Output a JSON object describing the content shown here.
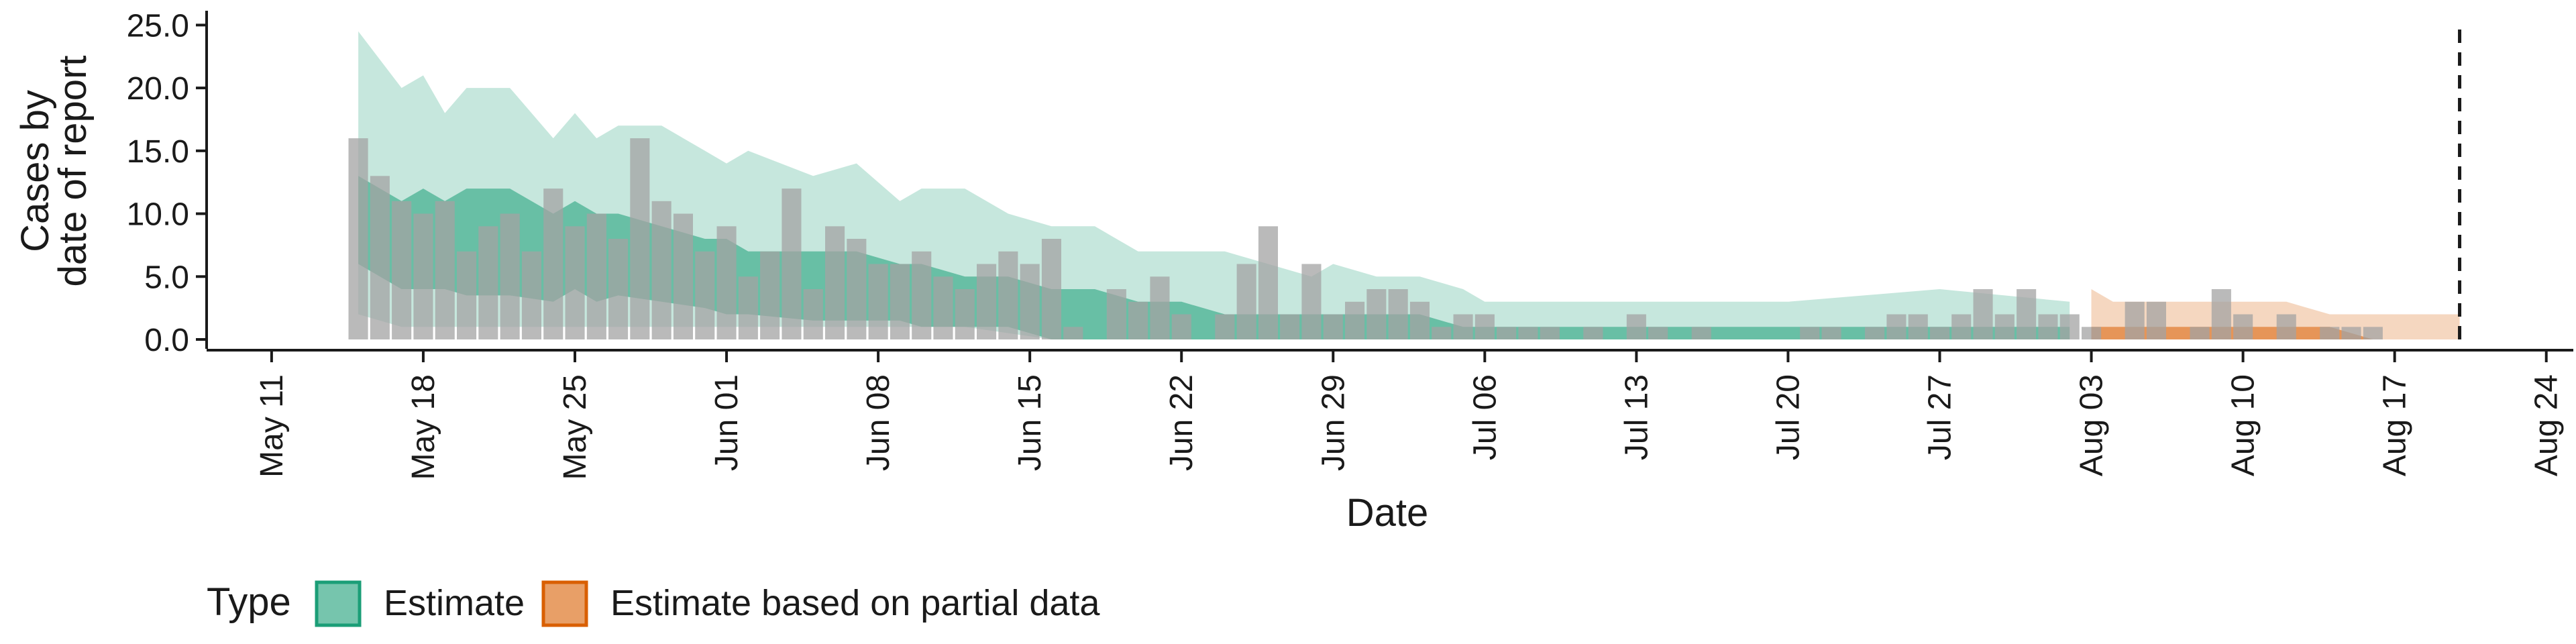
{
  "chart_data": {
    "type": "bar",
    "xlabel": "Date",
    "ylabel_lines": [
      "Cases by",
      "date of report"
    ],
    "y_ticks": [
      0,
      5,
      10,
      15,
      20,
      25
    ],
    "y_tick_labels": [
      "0.0",
      "5.0",
      "10.0",
      "15.0",
      "20.0",
      "25.0"
    ],
    "ylim": [
      0,
      25.5
    ],
    "xlim": [
      "2020-05-08",
      "2020-08-25"
    ],
    "x_ticks": [
      "2020-05-11",
      "2020-05-18",
      "2020-05-25",
      "2020-06-01",
      "2020-06-08",
      "2020-06-15",
      "2020-06-22",
      "2020-06-29",
      "2020-07-06",
      "2020-07-13",
      "2020-07-20",
      "2020-07-27",
      "2020-08-03",
      "2020-08-10",
      "2020-08-17",
      "2020-08-24"
    ],
    "x_tick_labels": [
      "May 11",
      "May 18",
      "May 25",
      "Jun 01",
      "Jun 08",
      "Jun 15",
      "Jun 22",
      "Jun 29",
      "Jul 06",
      "Jul 13",
      "Jul 20",
      "Jul 27",
      "Aug 03",
      "Aug 10",
      "Aug 17",
      "Aug 24"
    ],
    "vline_date": "2020-08-20",
    "observed": {
      "dates": [
        "2020-05-15",
        "2020-05-16",
        "2020-05-17",
        "2020-05-18",
        "2020-05-19",
        "2020-05-20",
        "2020-05-21",
        "2020-05-22",
        "2020-05-23",
        "2020-05-24",
        "2020-05-25",
        "2020-05-26",
        "2020-05-27",
        "2020-05-28",
        "2020-05-29",
        "2020-05-30",
        "2020-05-31",
        "2020-06-01",
        "2020-06-02",
        "2020-06-03",
        "2020-06-04",
        "2020-06-05",
        "2020-06-06",
        "2020-06-07",
        "2020-06-08",
        "2020-06-09",
        "2020-06-10",
        "2020-06-11",
        "2020-06-12",
        "2020-06-13",
        "2020-06-14",
        "2020-06-15",
        "2020-06-16",
        "2020-06-17",
        "2020-06-18",
        "2020-06-19",
        "2020-06-20",
        "2020-06-21",
        "2020-06-22",
        "2020-06-23",
        "2020-06-24",
        "2020-06-25",
        "2020-06-26",
        "2020-06-27",
        "2020-06-28",
        "2020-06-29",
        "2020-06-30",
        "2020-07-01",
        "2020-07-02",
        "2020-07-03",
        "2020-07-04",
        "2020-07-05",
        "2020-07-06",
        "2020-07-07",
        "2020-07-08",
        "2020-07-09",
        "2020-07-10",
        "2020-07-11",
        "2020-07-12",
        "2020-07-13",
        "2020-07-14",
        "2020-07-15",
        "2020-07-16",
        "2020-07-17",
        "2020-07-18",
        "2020-07-19",
        "2020-07-20",
        "2020-07-21",
        "2020-07-22",
        "2020-07-23",
        "2020-07-24",
        "2020-07-25",
        "2020-07-26",
        "2020-07-27",
        "2020-07-28",
        "2020-07-29",
        "2020-07-30",
        "2020-07-31",
        "2020-08-01",
        "2020-08-02",
        "2020-08-03",
        "2020-08-04",
        "2020-08-05",
        "2020-08-06",
        "2020-08-07",
        "2020-08-08",
        "2020-08-09",
        "2020-08-10",
        "2020-08-11",
        "2020-08-12",
        "2020-08-13",
        "2020-08-14",
        "2020-08-15",
        "2020-08-16"
      ],
      "values": [
        16,
        13,
        11,
        10,
        11,
        7,
        9,
        10,
        7,
        12,
        9,
        10,
        8,
        16,
        11,
        10,
        7,
        9,
        5,
        7,
        12,
        4,
        9,
        8,
        6,
        6,
        7,
        5,
        4,
        6,
        7,
        6,
        8,
        1,
        0,
        4,
        3,
        5,
        2,
        0,
        2,
        6,
        9,
        2,
        6,
        2,
        3,
        4,
        4,
        3,
        1,
        2,
        2,
        1,
        1,
        1,
        0,
        1,
        0,
        2,
        1,
        0,
        1,
        0,
        0,
        0,
        0,
        1,
        1,
        0,
        1,
        2,
        2,
        1,
        2,
        4,
        2,
        4,
        2,
        2,
        1,
        0,
        3,
        3,
        0,
        1,
        4,
        2,
        0,
        2,
        0,
        1,
        1,
        1
      ]
    },
    "series": [
      {
        "name": "Estimate",
        "color": "#1b9e77",
        "dates": [
          "2020-05-15",
          "2020-05-17",
          "2020-05-18",
          "2020-05-19",
          "2020-05-20",
          "2020-05-22",
          "2020-05-24",
          "2020-05-25",
          "2020-05-26",
          "2020-05-27",
          "2020-05-29",
          "2020-05-31",
          "2020-06-01",
          "2020-06-02",
          "2020-06-05",
          "2020-06-07",
          "2020-06-09",
          "2020-06-10",
          "2020-06-12",
          "2020-06-14",
          "2020-06-16",
          "2020-06-18",
          "2020-06-20",
          "2020-06-22",
          "2020-06-24",
          "2020-06-26",
          "2020-06-28",
          "2020-06-29",
          "2020-07-01",
          "2020-07-03",
          "2020-07-05",
          "2020-07-06",
          "2020-07-09",
          "2020-07-13",
          "2020-07-20",
          "2020-07-27",
          "2020-08-02"
        ],
        "ci90_lower": [
          2,
          1,
          1,
          1,
          1,
          1,
          1,
          1,
          1,
          1,
          1,
          1,
          1,
          1,
          1,
          1,
          1,
          1,
          1,
          0.5,
          0,
          0,
          0,
          0,
          0,
          0,
          0,
          0,
          0,
          0,
          0,
          0,
          0,
          0,
          0,
          0,
          0
        ],
        "ci90_upper": [
          24.5,
          20,
          21,
          18,
          20,
          20,
          16,
          18,
          16,
          17,
          17,
          15,
          14,
          15,
          13,
          14,
          11,
          12,
          12,
          10,
          9,
          9,
          7,
          7,
          7,
          6,
          5,
          6,
          5,
          5,
          4,
          3,
          3,
          3,
          3,
          4,
          3
        ],
        "ci50_lower": [
          6,
          4,
          4,
          4,
          3.5,
          3.5,
          3,
          4,
          3,
          3.5,
          3,
          2.5,
          2,
          2,
          1.5,
          1.5,
          1.5,
          1,
          1,
          1,
          0,
          0,
          0,
          0,
          0,
          0,
          0,
          0,
          0,
          0,
          0,
          0,
          0,
          0,
          0,
          0,
          0
        ],
        "ci50_upper": [
          13,
          11,
          12,
          11,
          12,
          12,
          10,
          11,
          10,
          10,
          9,
          8,
          8,
          7,
          7,
          7,
          6,
          6,
          5,
          5,
          4,
          4,
          3,
          3,
          2,
          2,
          2,
          2,
          2,
          2,
          1,
          1,
          1,
          1,
          1,
          1,
          1
        ]
      },
      {
        "name": "Estimate based on partial data",
        "color": "#d95f02",
        "dates": [
          "2020-08-03",
          "2020-08-04",
          "2020-08-08",
          "2020-08-12",
          "2020-08-14",
          "2020-08-16",
          "2020-08-20"
        ],
        "ci90_lower": [
          0,
          0,
          0,
          0,
          0,
          0,
          0
        ],
        "ci90_upper": [
          4,
          3,
          3,
          3,
          2,
          2,
          2
        ],
        "ci50_lower": [
          0,
          0,
          0,
          0,
          0,
          0,
          0
        ],
        "ci50_upper": [
          1,
          1,
          1,
          1,
          1,
          0,
          0
        ]
      }
    ],
    "legend": {
      "title": "Type",
      "position": "bottom-left",
      "items": [
        {
          "label": "Estimate",
          "color": "#1b9e77"
        },
        {
          "label": "Estimate based on partial data",
          "color": "#d95f02"
        }
      ]
    }
  }
}
